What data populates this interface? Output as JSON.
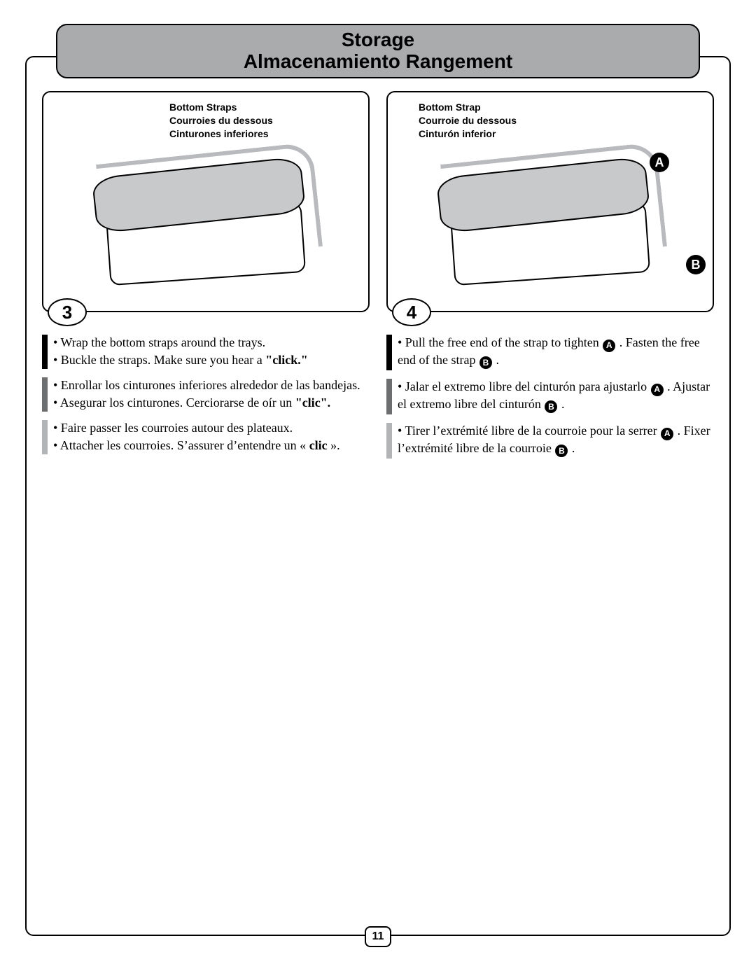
{
  "header": {
    "title_en": "Storage",
    "title_es_fr": "Almacenamiento   Rangement"
  },
  "page_number": "11",
  "left": {
    "step_number": "3",
    "strap_label": {
      "en": "Bottom Straps",
      "fr": "Courroies du dessous",
      "es": "Cinturones inferiores"
    },
    "instructions": {
      "en": [
        "• Wrap the bottom straps around the trays.",
        "• Buckle the straps. Make sure you hear a <b>\"click.\"</b>"
      ],
      "es": [
        "• Enrollar los cinturones inferiores alrededor de las bandejas.",
        "• Asegurar los cinturones. Cerciorarse de oír un <b>\"clic\".</b>"
      ],
      "fr": [
        "• Faire passer les courroies autour des plateaux.",
        "• Attacher les courroies. S’assurer d’entendre un « <b>clic</b> »."
      ]
    }
  },
  "right": {
    "step_number": "4",
    "strap_label": {
      "en": "Bottom Strap",
      "fr": "Courroie du dessous",
      "es": "Cinturón inferior"
    },
    "callouts": {
      "A": "A",
      "B": "B"
    },
    "instructions": {
      "en": [
        "• Pull the free end of the strap to tighten <span class='inline-badge'>A</span> . Fasten the free end of the strap <span class='inline-badge'>B</span> ."
      ],
      "es": [
        "• Jalar el extremo libre del cinturón para ajustarlo <span class='inline-badge'>A</span> . Ajustar el extremo libre del cinturón <span class='inline-badge'>B</span> ."
      ],
      "fr": [
        "• Tirer l’extrémité libre de la courroie pour la serrer <span class='inline-badge'>A</span> . Fixer l’extrémité libre de la courroie <span class='inline-badge'>B</span> ."
      ]
    }
  },
  "colors": {
    "header_bg": "#a9abad",
    "bar_en": "#000000",
    "bar_es": "#6d6e70",
    "bar_fr": "#b3b4b6"
  }
}
